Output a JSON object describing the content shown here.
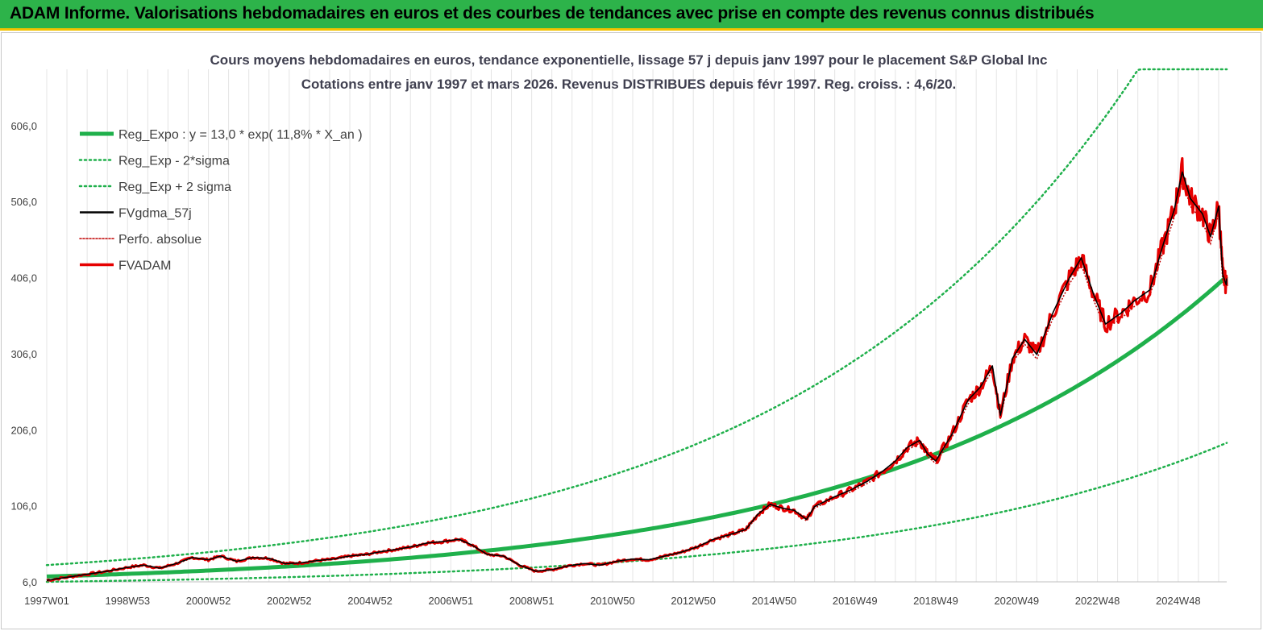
{
  "banner": {
    "title": "ADAM Informe. Valorisations hebdomadaires en euros et des courbes de tendances avec prise en compte des revenus connus distribués"
  },
  "chart_data": {
    "type": "line",
    "title": "Cours moyens hebdomadaires en euros, tendance exponentielle, lissage 57 j depuis janv 1997 pour le placement S&P Global Inc",
    "subtitle": "Cotations entre janv 1997 et mars 2026. Revenus DISTRIBUES depuis févr 1997. Reg. croiss. : 4,6/20.",
    "xlabel": "",
    "ylabel": "",
    "x_range": [
      1997.0,
      2026.2
    ],
    "ylim": [
      6,
      680
    ],
    "y_ticks": [
      "6,0",
      "106,0",
      "206,0",
      "306,0",
      "406,0",
      "506,0",
      "606,0"
    ],
    "y_tick_values": [
      6,
      106,
      206,
      306,
      406,
      506,
      606
    ],
    "x_ticks": [
      "1997W01",
      "1998W53",
      "2000W52",
      "2002W52",
      "2004W52",
      "2006W51",
      "2008W51",
      "2010W50",
      "2012W50",
      "2014W50",
      "2016W49",
      "2018W49",
      "2020W49",
      "2022W48",
      "2024W48"
    ],
    "x_tick_values": [
      1997.0,
      1999.0,
      2001.0,
      2003.0,
      2005.0,
      2007.0,
      2009.0,
      2011.0,
      2013.0,
      2015.0,
      2017.0,
      2019.0,
      2021.0,
      2023.0,
      2025.0
    ],
    "grid": "vertical",
    "legend_position": "top-left",
    "colors": {
      "reg_expo": "#1fb04b",
      "sigma": "#1fb04b",
      "fvgdma": "#000000",
      "perfo": "#c00000",
      "fvadam": "#e60000",
      "banner": "#2db34a",
      "banner_border": "#f2c200"
    },
    "regression": {
      "a": 13.0,
      "rate": 0.118
    },
    "series": [
      {
        "name": "Reg_Expo : y = 13,0 * exp( 11,8% *  X_an )",
        "style": "solid-thick",
        "color": "#1fb04b",
        "key": "reg_expo"
      },
      {
        "name": "Reg_Exp - 2*sigma",
        "style": "dotted",
        "color": "#1fb04b",
        "key": "lower"
      },
      {
        "name": "Reg_Exp + 2 sigma",
        "style": "dotted",
        "color": "#1fb04b",
        "key": "upper"
      },
      {
        "name": "FVgdma_57j",
        "style": "solid",
        "color": "#000000",
        "key": "fvgdma"
      },
      {
        "name": "Perfo. absolue",
        "style": "dotted-thin",
        "color": "#c00000",
        "key": "perfo"
      },
      {
        "name": "FVADAM",
        "style": "solid-thick",
        "color": "#e60000",
        "key": "fvadam"
      }
    ],
    "band_factor": 2.16,
    "fvadam_points": [
      [
        1997.0,
        8
      ],
      [
        1997.5,
        12
      ],
      [
        1998.0,
        16
      ],
      [
        1998.5,
        20
      ],
      [
        1999.0,
        25
      ],
      [
        1999.4,
        28
      ],
      [
        1999.8,
        24
      ],
      [
        2000.2,
        30
      ],
      [
        2000.6,
        38
      ],
      [
        2001.0,
        35
      ],
      [
        2001.3,
        40
      ],
      [
        2001.7,
        33
      ],
      [
        2002.1,
        38
      ],
      [
        2002.5,
        37
      ],
      [
        2002.9,
        30
      ],
      [
        2003.3,
        31
      ],
      [
        2003.7,
        34
      ],
      [
        2004.1,
        36
      ],
      [
        2004.5,
        40
      ],
      [
        2004.9,
        42
      ],
      [
        2005.3,
        46
      ],
      [
        2005.7,
        49
      ],
      [
        2006.1,
        53
      ],
      [
        2006.4,
        57
      ],
      [
        2006.8,
        59
      ],
      [
        2007.2,
        62
      ],
      [
        2007.5,
        55
      ],
      [
        2007.9,
        42
      ],
      [
        2008.3,
        40
      ],
      [
        2008.7,
        28
      ],
      [
        2009.1,
        20
      ],
      [
        2009.5,
        22
      ],
      [
        2009.9,
        27
      ],
      [
        2010.3,
        30
      ],
      [
        2010.7,
        28
      ],
      [
        2011.1,
        33
      ],
      [
        2011.5,
        36
      ],
      [
        2011.9,
        35
      ],
      [
        2012.3,
        40
      ],
      [
        2012.7,
        45
      ],
      [
        2013.1,
        52
      ],
      [
        2013.5,
        62
      ],
      [
        2013.9,
        68
      ],
      [
        2014.3,
        75
      ],
      [
        2014.6,
        95
      ],
      [
        2014.9,
        108
      ],
      [
        2015.2,
        103
      ],
      [
        2015.5,
        100
      ],
      [
        2015.8,
        88
      ],
      [
        2016.0,
        105
      ],
      [
        2016.5,
        118
      ],
      [
        2016.9,
        127
      ],
      [
        2017.3,
        138
      ],
      [
        2017.7,
        152
      ],
      [
        2018.0,
        165
      ],
      [
        2018.3,
        183
      ],
      [
        2018.6,
        192
      ],
      [
        2018.8,
        174
      ],
      [
        2019.0,
        165
      ],
      [
        2019.4,
        200
      ],
      [
        2019.8,
        245
      ],
      [
        2020.1,
        262
      ],
      [
        2020.4,
        290
      ],
      [
        2020.6,
        225
      ],
      [
        2020.9,
        300
      ],
      [
        2021.2,
        325
      ],
      [
        2021.5,
        305
      ],
      [
        2021.9,
        360
      ],
      [
        2022.3,
        405
      ],
      [
        2022.6,
        432
      ],
      [
        2022.9,
        385
      ],
      [
        2023.2,
        345
      ],
      [
        2023.6,
        360
      ],
      [
        2023.9,
        375
      ],
      [
        2024.3,
        390
      ],
      [
        2024.6,
        445
      ],
      [
        2024.9,
        495
      ],
      [
        2025.1,
        545
      ],
      [
        2025.3,
        510
      ],
      [
        2025.6,
        490
      ],
      [
        2025.8,
        460
      ],
      [
        2026.0,
        500
      ],
      [
        2026.1,
        410
      ],
      [
        2026.2,
        395
      ]
    ]
  }
}
